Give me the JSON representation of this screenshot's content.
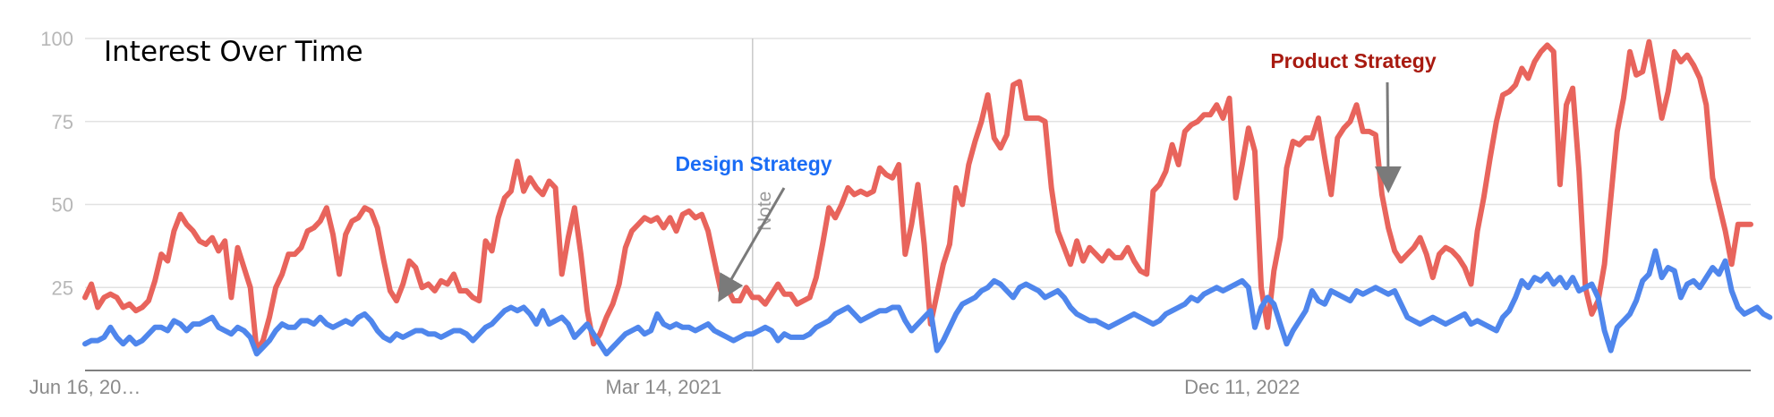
{
  "chart_data": {
    "type": "line",
    "title": "Interest Over Time",
    "xlabel": "",
    "ylabel": "",
    "ylim": [
      0,
      100
    ],
    "yticks": [
      25,
      50,
      75,
      100
    ],
    "grid": true,
    "x_start": "2019-06-16",
    "x_end": "2024-06-09",
    "x_step_weeks": 1,
    "xtick_labels": [
      "Jun 16, 20…",
      "Mar 14, 2021",
      "Dec 11, 2022"
    ],
    "xtick_dates": [
      "2019-06-16",
      "2021-03-14",
      "2022-12-11"
    ],
    "note_marker": {
      "label": "Note",
      "date": "2021-06-20"
    },
    "annotations": [
      {
        "series": "Design Strategy",
        "text": "Design Strategy",
        "target_date": "2021-05-16",
        "target_value": 22
      },
      {
        "series": "Product Strategy",
        "text": "Product Strategy",
        "target_date": "2023-05-21",
        "target_value": 55
      }
    ],
    "series": [
      {
        "name": "Product Strategy",
        "color": "#e8645c",
        "values": [
          22,
          26,
          19,
          22,
          23,
          22,
          19,
          20,
          18,
          19,
          21,
          27,
          35,
          33,
          42,
          47,
          44,
          42,
          39,
          38,
          40,
          36,
          39,
          22,
          37,
          31,
          25,
          6,
          9,
          16,
          25,
          29,
          35,
          35,
          37,
          42,
          43,
          45,
          49,
          41,
          29,
          41,
          45,
          46,
          49,
          48,
          43,
          33,
          24,
          21,
          26,
          33,
          31,
          25,
          26,
          24,
          27,
          26,
          29,
          24,
          24,
          22,
          21,
          39,
          36,
          46,
          52,
          54,
          63,
          54,
          58,
          55,
          53,
          57,
          55,
          29,
          40,
          49,
          35,
          18,
          8,
          11,
          16,
          20,
          26,
          37,
          42,
          44,
          46,
          45,
          46,
          43,
          46,
          42,
          47,
          48,
          46,
          47,
          42,
          33,
          24,
          25,
          21,
          21,
          25,
          22,
          22,
          20,
          23,
          26,
          23,
          23,
          20,
          21,
          22,
          28,
          38,
          49,
          46,
          50,
          55,
          53,
          54,
          53,
          54,
          61,
          59,
          58,
          62,
          35,
          44,
          56,
          38,
          14,
          23,
          32,
          38,
          55,
          50,
          62,
          69,
          75,
          83,
          70,
          67,
          71,
          86,
          87,
          76,
          76,
          76,
          75,
          55,
          42,
          37,
          32,
          39,
          33,
          37,
          35,
          33,
          36,
          34,
          34,
          37,
          33,
          30,
          29,
          54,
          56,
          60,
          68,
          62,
          72,
          74,
          75,
          77,
          77,
          80,
          76,
          82,
          52,
          62,
          73,
          66,
          25,
          13,
          30,
          40,
          61,
          69,
          68,
          70,
          70,
          76,
          64,
          53,
          70,
          73,
          75,
          80,
          72,
          72,
          71,
          53,
          43,
          36,
          33,
          35,
          37,
          40,
          35,
          28,
          35,
          37,
          36,
          34,
          31,
          26,
          42,
          52,
          64,
          75,
          83,
          84,
          86,
          91,
          88,
          93,
          96,
          98,
          96,
          56,
          80,
          85,
          60,
          25,
          17,
          21,
          32,
          52,
          72,
          82,
          96,
          89,
          90,
          99,
          88,
          76,
          84,
          96,
          93,
          95,
          92,
          88,
          80,
          58,
          50,
          42,
          32,
          44,
          44,
          44
        ]
      },
      {
        "name": "Design Strategy",
        "color": "#4f86ec",
        "values": [
          8,
          9,
          9,
          10,
          13,
          10,
          8,
          10,
          8,
          9,
          11,
          13,
          13,
          12,
          15,
          14,
          12,
          14,
          14,
          15,
          16,
          13,
          12,
          11,
          13,
          12,
          10,
          5,
          7,
          9,
          12,
          14,
          13,
          13,
          15,
          15,
          14,
          16,
          14,
          13,
          14,
          15,
          14,
          16,
          17,
          15,
          12,
          10,
          9,
          11,
          10,
          11,
          12,
          12,
          11,
          11,
          10,
          11,
          12,
          12,
          11,
          9,
          11,
          13,
          14,
          16,
          18,
          19,
          18,
          19,
          17,
          14,
          18,
          14,
          15,
          16,
          14,
          10,
          12,
          14,
          11,
          8,
          5,
          7,
          9,
          11,
          12,
          13,
          11,
          12,
          17,
          14,
          13,
          14,
          13,
          13,
          12,
          13,
          14,
          12,
          11,
          10,
          9,
          10,
          11,
          11,
          12,
          13,
          12,
          9,
          11,
          10,
          10,
          10,
          11,
          13,
          14,
          15,
          17,
          18,
          19,
          17,
          15,
          16,
          17,
          18,
          18,
          19,
          19,
          15,
          12,
          14,
          16,
          18,
          6,
          9,
          13,
          17,
          20,
          21,
          22,
          24,
          25,
          27,
          26,
          24,
          22,
          25,
          26,
          25,
          24,
          22,
          23,
          24,
          22,
          19,
          17,
          16,
          15,
          15,
          14,
          13,
          14,
          15,
          16,
          17,
          16,
          15,
          14,
          15,
          17,
          18,
          19,
          20,
          22,
          21,
          23,
          24,
          25,
          24,
          25,
          26,
          27,
          25,
          13,
          19,
          22,
          20,
          14,
          8,
          12,
          15,
          18,
          24,
          21,
          20,
          24,
          23,
          22,
          21,
          24,
          23,
          24,
          25,
          24,
          23,
          24,
          20,
          16,
          15,
          14,
          15,
          16,
          15,
          14,
          15,
          16,
          17,
          14,
          15,
          14,
          13,
          12,
          16,
          18,
          22,
          27,
          25,
          28,
          27,
          29,
          26,
          28,
          25,
          28,
          24,
          25,
          26,
          22,
          12,
          6,
          13,
          15,
          17,
          21,
          27,
          29,
          36,
          28,
          31,
          30,
          22,
          26,
          27,
          25,
          28,
          31,
          29,
          33,
          24,
          19,
          17,
          18,
          19,
          17,
          16
        ]
      }
    ]
  }
}
